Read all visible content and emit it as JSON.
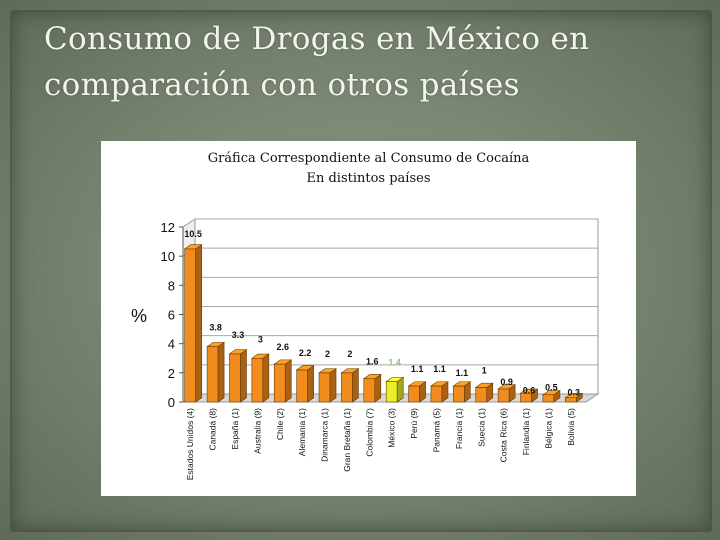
{
  "slide": {
    "title_line1": "Consumo de Drogas en México en",
    "title_line2": "comparación con otros países"
  },
  "colors": {
    "bar": "#f28c1e",
    "bar_highlight": "#e9ee2a",
    "value_label": "#111111",
    "value_label_highlight": "#8fbf7a"
  },
  "chart_data": {
    "type": "bar",
    "title": "Gráfica Correspondiente al Consumo de Cocaína",
    "subtitle": "En distintos países",
    "ylabel": "%",
    "xlabel": "",
    "ylim": [
      0,
      12
    ],
    "yticks": [
      0,
      2,
      4,
      6,
      8,
      10,
      12
    ],
    "grid": true,
    "style": "3d",
    "categories": [
      "Estados Unidos (4)",
      "Canadá (8)",
      "España (1)",
      "Australia (9)",
      "Chile (2)",
      "Alemania (1)",
      "Dinamarca (1)",
      "Gran Bretaña (1)",
      "Colombia (7)",
      "México (3)",
      "Perú (9)",
      "Panamá (5)",
      "Francia (1)",
      "Suecia (1)",
      "Costa Rica (6)",
      "Finlandia (1)",
      "Bélgica (1)",
      "Bolivia (5)"
    ],
    "values": [
      10.5,
      3.8,
      3.3,
      3,
      2.6,
      2.2,
      2,
      2,
      1.6,
      1.4,
      1.1,
      1.1,
      1.1,
      1,
      0.9,
      0.6,
      0.5,
      0.3
    ],
    "value_labels": [
      "10.5",
      "3.8",
      "3.3",
      "3",
      "2.6",
      "2.2",
      "2",
      "2",
      "1.6",
      "1.4",
      "1.1",
      "1.1",
      "1.1",
      "1",
      "0.9",
      "0.6",
      "0.5",
      "0.3"
    ],
    "highlight_category": "México (3)"
  }
}
